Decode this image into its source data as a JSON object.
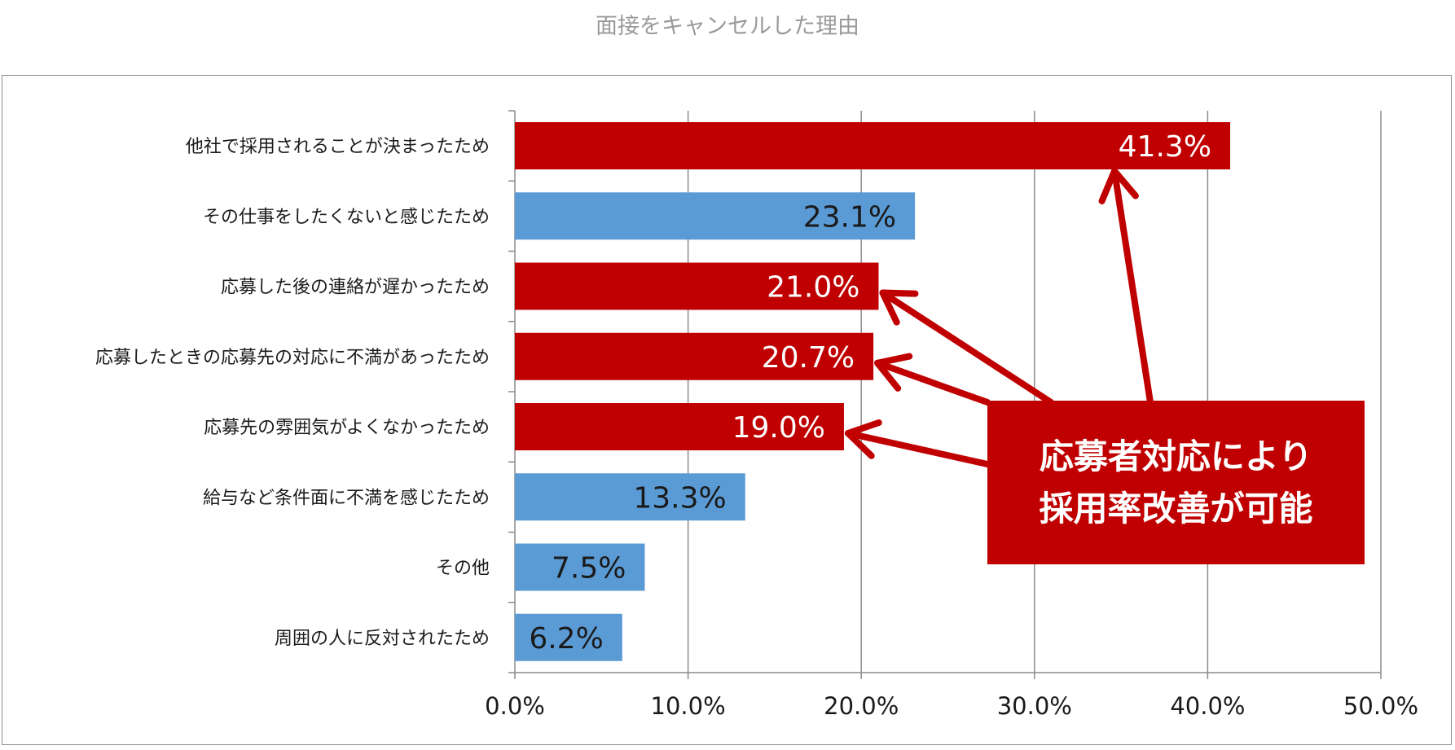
{
  "chart_data": {
    "type": "bar",
    "title": "面接をキャンセルした理由",
    "orientation": "horizontal",
    "categories": [
      "他社で採用されることが決まったため",
      "その仕事をしたくないと感じたため",
      "応募した後の連絡が遅かったため",
      "応募したときの応募先の対応に不満があったため",
      "応募先の雰囲気がよくなかったため",
      "給与など条件面に不満を感じたため",
      "その他",
      "周囲の人に反対されたため"
    ],
    "values": [
      41.3,
      23.1,
      21.0,
      20.7,
      19.0,
      13.3,
      7.5,
      6.2
    ],
    "value_labels": [
      "41.3%",
      "23.1%",
      "21.0%",
      "20.7%",
      "19.0%",
      "13.3%",
      "7.5%",
      "6.2%"
    ],
    "bar_colors": [
      "#c00000",
      "#5b9bd5",
      "#c00000",
      "#c00000",
      "#c00000",
      "#5b9bd5",
      "#5b9bd5",
      "#5b9bd5"
    ],
    "label_colors": [
      "#ffffff",
      "#1a1a1a",
      "#ffffff",
      "#ffffff",
      "#ffffff",
      "#1a1a1a",
      "#1a1a1a",
      "#1a1a1a"
    ],
    "xlim": [
      0,
      50
    ],
    "xticks": [
      0,
      10,
      20,
      30,
      40,
      50
    ],
    "xtick_labels": [
      "0.0%",
      "10.0%",
      "20.0%",
      "30.0%",
      "40.0%",
      "50.0%"
    ],
    "grid": true,
    "legend": "none",
    "annotation": {
      "lines": [
        "応募者対応により",
        "採用率改善が可能"
      ],
      "color": "#c00000",
      "arrow_targets": [
        0,
        2,
        3,
        4
      ]
    }
  }
}
